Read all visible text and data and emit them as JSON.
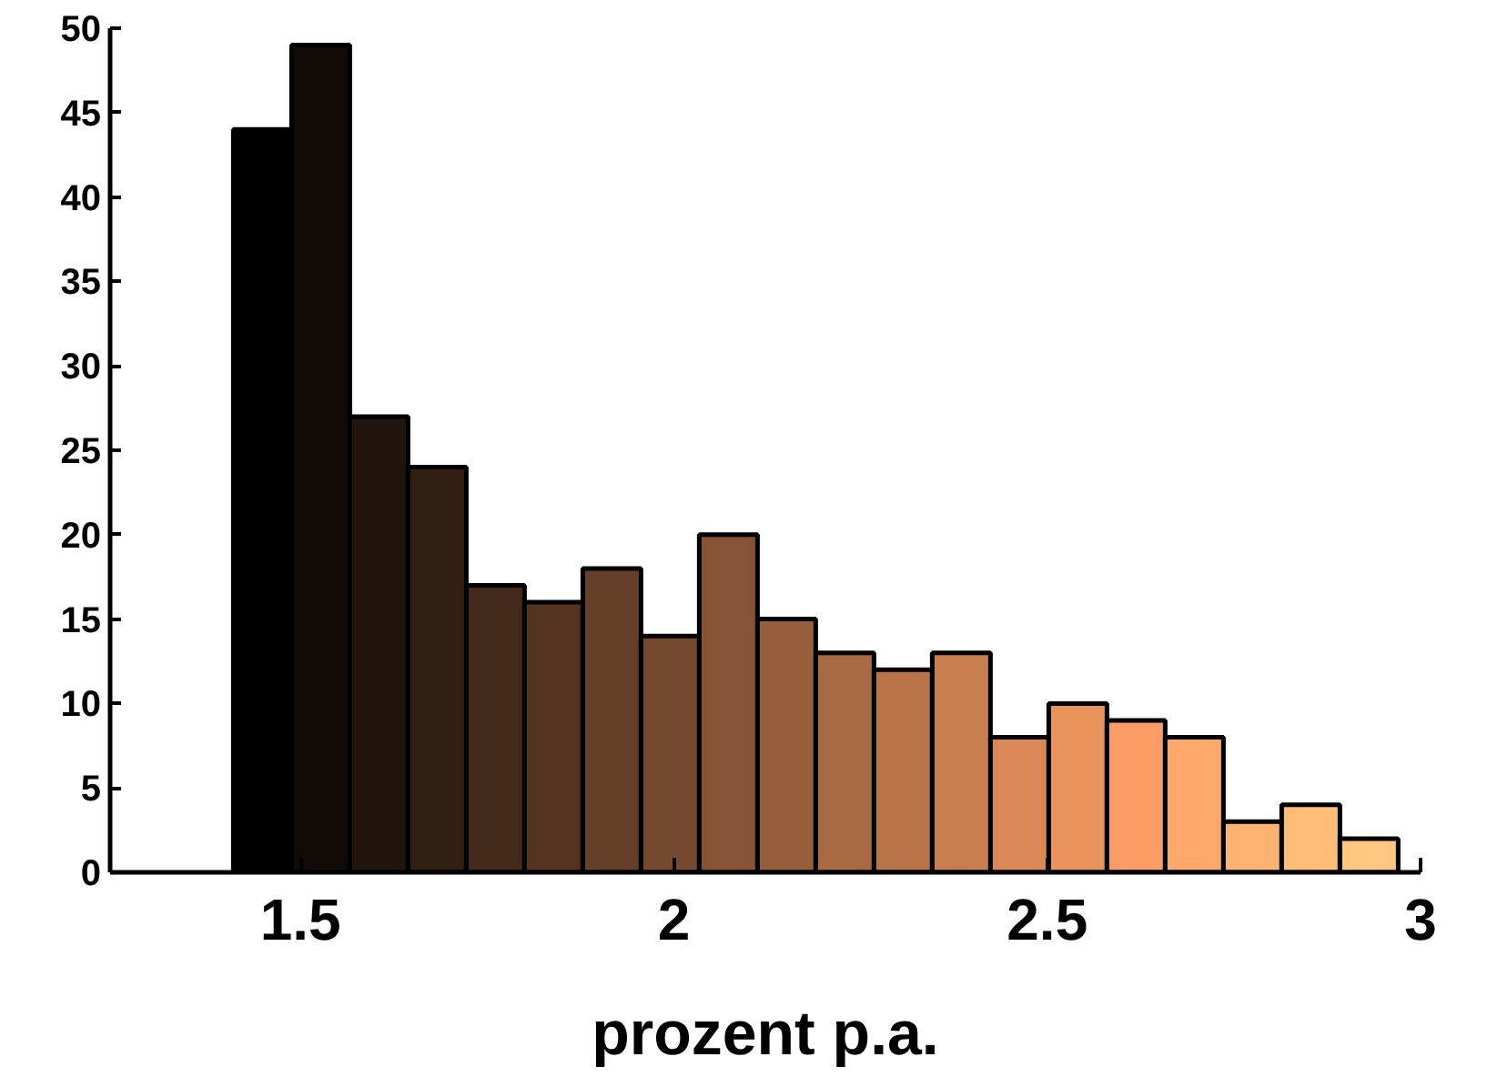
{
  "chart_data": {
    "type": "histogram",
    "xlabel": "prozent p.a.",
    "bins": [
      1.41,
      1.488,
      1.566,
      1.644,
      1.722,
      1.8,
      1.878,
      1.956,
      2.034,
      2.112,
      2.19,
      2.268,
      2.346,
      2.424,
      2.502,
      2.58,
      2.658,
      2.736,
      2.814,
      2.892,
      2.97
    ],
    "values": [
      44,
      49,
      27,
      24,
      17,
      16,
      18,
      14,
      20,
      15,
      13,
      12,
      13,
      8,
      10,
      9,
      8,
      3,
      4,
      2
    ],
    "colors": [
      "#000000",
      "#110a07",
      "#22150d",
      "#321f14",
      "#432a1b",
      "#543421",
      "#653f28",
      "#75492f",
      "#865435",
      "#975e3c",
      "#a86943",
      "#b87349",
      "#c97e50",
      "#da8857",
      "#eb935d",
      "#fb9d64",
      "#ffa86b",
      "#ffb272",
      "#ffbd78",
      "#ffc77f"
    ],
    "xlim": [
      1.245,
      3
    ],
    "xticks": [
      1.5,
      2,
      2.5,
      3
    ],
    "ylim": [
      0,
      50
    ],
    "yticks": [
      0,
      5,
      10,
      15,
      20,
      25,
      30,
      35,
      40,
      45,
      50
    ],
    "grid": false
  }
}
